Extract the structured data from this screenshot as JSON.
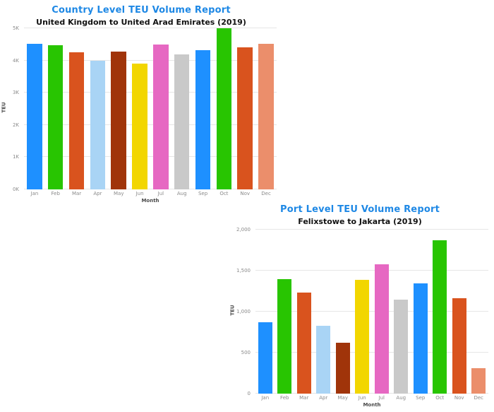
{
  "theme": {
    "title_color": "#1E88E5",
    "gridline_color": "#E6E6E6",
    "tick_color": "#8a8a8a",
    "background": "#ffffff"
  },
  "chart_data": [
    {
      "type": "bar",
      "title": "Country Level TEU Volume Report",
      "subtitle": "United Kingdom to United Arad Emirates (2019)",
      "xlabel": "Month",
      "ylabel": "TEU",
      "ymax": 5000,
      "grid": true,
      "legend": "none",
      "yticks": [
        {
          "value": 0,
          "label": "0K"
        },
        {
          "value": 1000,
          "label": "1K"
        },
        {
          "value": 2000,
          "label": "2K"
        },
        {
          "value": 3000,
          "label": "3K"
        },
        {
          "value": 4000,
          "label": "4K"
        },
        {
          "value": 5000,
          "label": "5K"
        }
      ],
      "categories": [
        "Jan",
        "Feb",
        "Mar",
        "Apr",
        "May",
        "Jun",
        "Jul",
        "Aug",
        "Sep",
        "Oct",
        "Nov",
        "Dec"
      ],
      "values": [
        4520,
        4480,
        4260,
        4000,
        4280,
        3910,
        4500,
        4190,
        4320,
        5000,
        4410,
        4520
      ],
      "colors": [
        "#1E90FF",
        "#28C501",
        "#D9531E",
        "#A9D4F5",
        "#A0340A",
        "#F2D600",
        "#E668C2",
        "#C9C9C9",
        "#1E90FF",
        "#28C501",
        "#D9531E",
        "#EB8E6B"
      ]
    },
    {
      "type": "bar",
      "title": "Port Level TEU Volume Report",
      "subtitle": "Felixstowe to Jakarta (2019)",
      "xlabel": "Month",
      "ylabel": "TEU",
      "ymax": 2000,
      "grid": true,
      "legend": "none",
      "yticks": [
        {
          "value": 0,
          "label": "0"
        },
        {
          "value": 500,
          "label": "500"
        },
        {
          "value": 1000,
          "label": "1,000"
        },
        {
          "value": 1500,
          "label": "1,500"
        },
        {
          "value": 2000,
          "label": "2,000"
        }
      ],
      "categories": [
        "Jan",
        "Feb",
        "Mar",
        "Apr",
        "May",
        "Jun",
        "Jul",
        "Aug",
        "Sep",
        "Oct",
        "Nov",
        "Dec"
      ],
      "values": [
        875,
        1400,
        1230,
        825,
        620,
        1385,
        1580,
        1150,
        1345,
        1870,
        1160,
        310
      ],
      "colors": [
        "#1E90FF",
        "#28C501",
        "#D9531E",
        "#A9D4F5",
        "#A0340A",
        "#F2D600",
        "#E668C2",
        "#C9C9C9",
        "#1E90FF",
        "#28C501",
        "#D9531E",
        "#EB8E6B"
      ]
    }
  ]
}
